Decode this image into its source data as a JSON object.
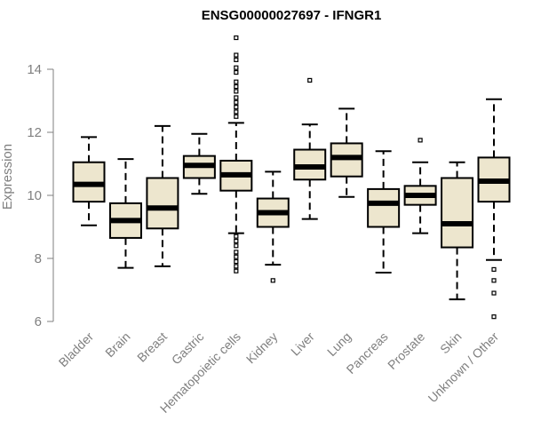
{
  "chart_data": {
    "type": "boxplot",
    "title": "ENSG00000027697 - IFNGR1",
    "xlabel": "",
    "ylabel": "Expression",
    "ylim": [
      6,
      15
    ],
    "yticks": [
      6,
      8,
      10,
      12,
      14
    ],
    "grid": false,
    "box_fill": "#ede6ce",
    "median_color": "#000000",
    "series": [
      {
        "category": "Bladder",
        "whisker_low": 9.05,
        "q1": 9.8,
        "median": 10.35,
        "q3": 11.05,
        "whisker_high": 11.85,
        "outliers": []
      },
      {
        "category": "Brain",
        "whisker_low": 7.7,
        "q1": 8.65,
        "median": 9.2,
        "q3": 9.75,
        "whisker_high": 11.15,
        "outliers": []
      },
      {
        "category": "Breast",
        "whisker_low": 7.75,
        "q1": 8.95,
        "median": 9.6,
        "q3": 10.55,
        "whisker_high": 12.2,
        "outliers": []
      },
      {
        "category": "Gastric",
        "whisker_low": 10.05,
        "q1": 10.55,
        "median": 10.95,
        "q3": 11.25,
        "whisker_high": 11.95,
        "outliers": []
      },
      {
        "category": "Hematopoietic cells",
        "whisker_low": 8.8,
        "q1": 10.15,
        "median": 10.65,
        "q3": 11.1,
        "whisker_high": 12.3,
        "outliers": [
          15.0,
          14.45,
          14.3,
          14.05,
          13.9,
          13.6,
          13.45,
          13.3,
          13.1,
          12.95,
          12.8,
          12.65,
          12.5,
          8.7,
          8.55,
          8.4,
          8.2,
          8.05,
          7.9,
          7.75,
          7.6
        ]
      },
      {
        "category": "Kidney",
        "whisker_low": 7.8,
        "q1": 9.0,
        "median": 9.45,
        "q3": 9.9,
        "whisker_high": 10.75,
        "outliers": [
          7.3
        ]
      },
      {
        "category": "Liver",
        "whisker_low": 9.25,
        "q1": 10.5,
        "median": 10.9,
        "q3": 11.45,
        "whisker_high": 12.25,
        "outliers": [
          13.65
        ]
      },
      {
        "category": "Lung",
        "whisker_low": 9.95,
        "q1": 10.6,
        "median": 11.2,
        "q3": 11.65,
        "whisker_high": 12.75,
        "outliers": []
      },
      {
        "category": "Pancreas",
        "whisker_low": 7.55,
        "q1": 9.0,
        "median": 9.75,
        "q3": 10.2,
        "whisker_high": 11.4,
        "outliers": []
      },
      {
        "category": "Prostate",
        "whisker_low": 8.8,
        "q1": 9.7,
        "median": 10.0,
        "q3": 10.3,
        "whisker_high": 11.05,
        "outliers": [
          11.75
        ]
      },
      {
        "category": "Skin",
        "whisker_low": 6.7,
        "q1": 8.35,
        "median": 9.1,
        "q3": 10.55,
        "whisker_high": 11.05,
        "outliers": []
      },
      {
        "category": "Unknown / Other",
        "whisker_low": 7.95,
        "q1": 9.8,
        "median": 10.45,
        "q3": 11.2,
        "whisker_high": 13.05,
        "outliers": [
          7.65,
          7.3,
          6.9,
          6.15
        ]
      }
    ]
  }
}
